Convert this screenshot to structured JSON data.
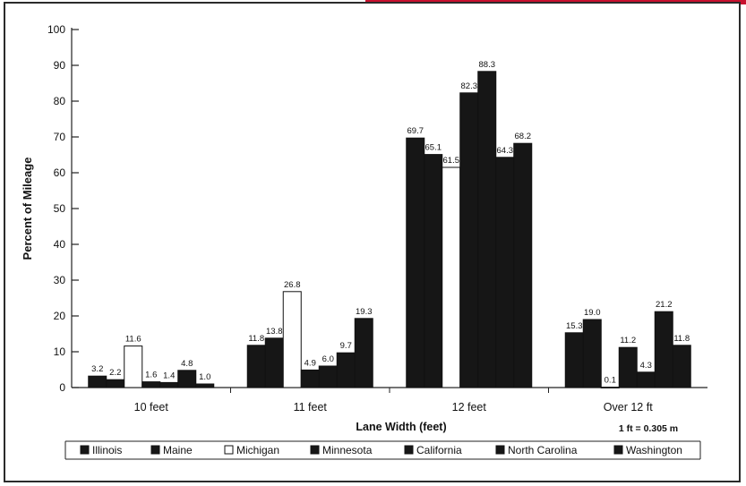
{
  "chart_data": {
    "type": "bar",
    "title": "",
    "xlabel": "Lane Width (feet)",
    "ylabel": "Percent of Mileage",
    "ylim": [
      0,
      100
    ],
    "yticks": [
      0,
      10,
      20,
      30,
      40,
      50,
      60,
      70,
      80,
      90,
      100
    ],
    "categories": [
      "10 feet",
      "11 feet",
      "12 feet",
      "Over 12 ft"
    ],
    "series": [
      {
        "name": "Illinois",
        "values": [
          3.2,
          11.8,
          69.7,
          15.3
        ],
        "labels": [
          "3.2",
          "11.8",
          "69.7",
          "15.3"
        ]
      },
      {
        "name": "Maine",
        "values": [
          2.2,
          13.8,
          65.1,
          19.0
        ],
        "labels": [
          "2.2",
          "13.8",
          "65.1",
          "19.0"
        ]
      },
      {
        "name": "Michigan",
        "values": [
          11.6,
          26.8,
          61.5,
          0.1
        ],
        "labels": [
          "11.6",
          "26.8",
          "61.5",
          "0.1"
        ]
      },
      {
        "name": "Minnesota",
        "values": [
          1.6,
          4.9,
          82.3,
          11.2
        ],
        "labels": [
          "1.6",
          "4.9",
          "82.3",
          "11.2"
        ]
      },
      {
        "name": "California",
        "values": [
          1.4,
          6.0,
          88.3,
          4.3
        ],
        "labels": [
          "1.4",
          "6.0",
          "88.3",
          "4.3"
        ]
      },
      {
        "name": "North Carolina",
        "values": [
          4.8,
          9.7,
          64.3,
          21.2
        ],
        "labels": [
          "4.8",
          "9.7",
          "64.3",
          "21.2"
        ]
      },
      {
        "name": "Washington",
        "values": [
          1.0,
          19.3,
          68.2,
          11.8
        ],
        "labels": [
          "1.0",
          "19.3",
          "68.2",
          "11.8"
        ]
      }
    ],
    "colors": {
      "filled": "#161616",
      "hollow": "#ffffff",
      "accent": "#c8102e"
    },
    "legend_position": "bottom",
    "note": "1 ft = 0.305 m"
  }
}
